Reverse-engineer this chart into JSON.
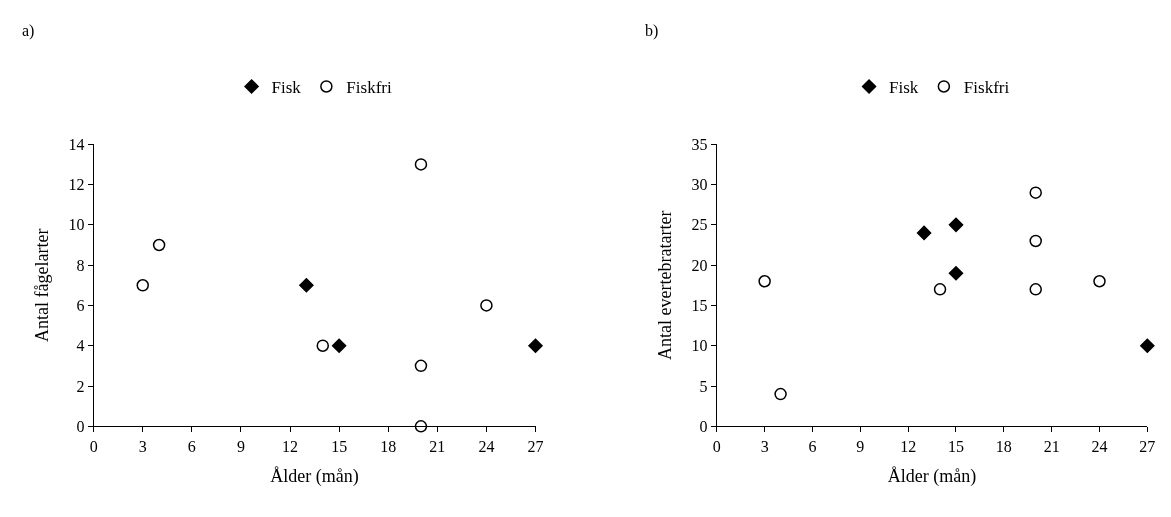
{
  "chart_data": [
    {
      "type": "scatter",
      "title": "a)",
      "xlabel": "Ålder (mån)",
      "ylabel": "Antal fågelarter",
      "xlim": [
        0,
        27
      ],
      "xticks": [
        0,
        3,
        6,
        9,
        12,
        15,
        18,
        21,
        24,
        27
      ],
      "ylim": [
        0,
        14
      ],
      "yticks": [
        0,
        2,
        4,
        6,
        8,
        10,
        12,
        14
      ],
      "grid": false,
      "legend": "top",
      "series": [
        {
          "name": "Fisk",
          "color": "#000000",
          "marker": "diamond",
          "x": [
            13,
            15,
            27
          ],
          "values": [
            7,
            4,
            4
          ]
        },
        {
          "name": "Fiskfri",
          "color": "#000000",
          "marker": "circle",
          "x": [
            3,
            4,
            14,
            20,
            20,
            20,
            24
          ],
          "values": [
            7,
            9,
            4,
            13,
            3,
            0,
            6
          ]
        }
      ]
    },
    {
      "type": "scatter",
      "title": "b)",
      "xlabel": "Ålder (mån)",
      "ylabel": "Antal evertebratarter",
      "xlim": [
        0,
        27
      ],
      "xticks": [
        0,
        3,
        6,
        9,
        12,
        15,
        18,
        21,
        24,
        27
      ],
      "ylim": [
        0,
        35
      ],
      "yticks": [
        0,
        5,
        10,
        15,
        20,
        25,
        30,
        35
      ],
      "grid": false,
      "legend": "top",
      "series": [
        {
          "name": "Fisk",
          "color": "#000000",
          "marker": "diamond",
          "x": [
            13,
            15,
            15,
            27
          ],
          "values": [
            24,
            25,
            19,
            10
          ]
        },
        {
          "name": "Fiskfri",
          "color": "#000000",
          "marker": "circle",
          "x": [
            3,
            4,
            14,
            20,
            20,
            20,
            24
          ],
          "values": [
            18,
            4,
            17,
            29,
            23,
            17,
            18
          ]
        }
      ]
    }
  ]
}
